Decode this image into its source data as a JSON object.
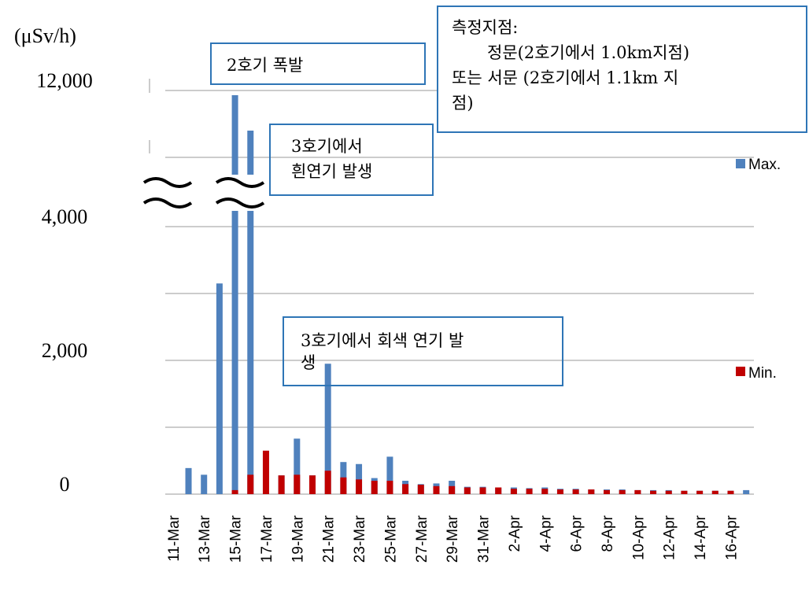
{
  "chart_data": {
    "type": "bar",
    "y_label": "(μSv/h)",
    "categories": [
      "11-Mar",
      null,
      "13-Mar",
      null,
      "15-Mar",
      null,
      "17-Mar",
      null,
      "19-Mar",
      null,
      "21-Mar",
      null,
      "23-Mar",
      null,
      "25-Mar",
      null,
      "27-Mar",
      null,
      "29-Mar",
      null,
      "31-Mar",
      null,
      "2-Apr",
      null,
      "4-Apr",
      null,
      "6-Apr",
      null,
      "8-Apr",
      null,
      "10-Apr",
      null,
      "12-Apr",
      null,
      "14-Apr",
      null,
      "16-Apr",
      null
    ],
    "series": [
      {
        "name": "Max.",
        "color": "#4f81bd",
        "values": [
          null,
          390,
          290,
          3150,
          11930,
          11400,
          null,
          280,
          830,
          280,
          1950,
          480,
          450,
          240,
          560,
          200,
          150,
          160,
          200,
          110,
          110,
          100,
          100,
          90,
          100,
          80,
          80,
          70,
          70,
          70,
          60,
          60,
          60,
          50,
          50,
          50,
          50,
          60
        ]
      },
      {
        "name": "Min.",
        "color": "#c00000",
        "values": [
          null,
          null,
          null,
          null,
          60,
          290,
          650,
          280,
          290,
          280,
          350,
          250,
          220,
          200,
          200,
          150,
          140,
          120,
          120,
          100,
          100,
          100,
          80,
          80,
          80,
          70,
          70,
          70,
          60,
          60,
          60,
          50,
          50,
          50,
          50,
          50,
          50,
          null
        ]
      }
    ],
    "ylim": [
      0,
      12000
    ],
    "ybreak": [
      4000,
      10000
    ],
    "yticks": [
      0,
      {
        "value": 2000,
        "label": "2,000"
      },
      {
        "value": 4000,
        "label": "4,000"
      },
      {
        "value": 12000,
        "label": "12,000"
      }
    ],
    "minor_yticks": [
      1000,
      3000,
      11000
    ],
    "grid": true,
    "annotations": [
      {
        "text": [
          "2호기 폭발"
        ]
      },
      {
        "text": [
          "3호기에서",
          "흰연기 발생"
        ]
      },
      {
        "text": [
          "3호기에서 회색 연기 발",
          "생"
        ]
      },
      {
        "text": [
          "측정지점:",
          "정문(2호기에서 1.0km지점)",
          "또는 서문 (2호기에서 1.1km 지",
          "점)"
        ]
      }
    ]
  }
}
